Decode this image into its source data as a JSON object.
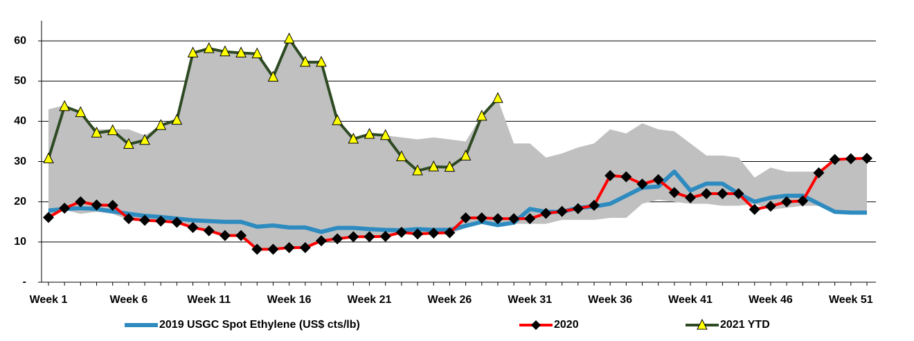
{
  "chart_data": {
    "type": "line",
    "categories": [
      "Week 1",
      null,
      null,
      null,
      null,
      "Week 6",
      null,
      null,
      null,
      null,
      "Week 11",
      null,
      null,
      null,
      null,
      "Week 16",
      null,
      null,
      null,
      null,
      "Week 21",
      null,
      null,
      null,
      null,
      "Week 26",
      null,
      null,
      null,
      null,
      "Week 31",
      null,
      null,
      null,
      null,
      "Week 36",
      null,
      null,
      null,
      null,
      "Week 41",
      null,
      null,
      null,
      null,
      "Week 46",
      null,
      null,
      null,
      null,
      "Week 51",
      null
    ],
    "ylim": [
      0,
      65
    ],
    "yticks": [
      {
        "value": 0,
        "label": "-"
      },
      10,
      20,
      30,
      40,
      50,
      60
    ],
    "grid": true,
    "legend": "bottom",
    "band": {
      "color": "#c0c0c0",
      "upper": [
        43,
        44,
        42,
        38,
        38,
        38,
        36.5,
        39,
        40.5,
        57,
        58,
        57,
        57,
        57,
        51,
        60.5,
        55,
        55,
        40,
        36,
        37,
        36.5,
        36,
        35.5,
        36,
        35.5,
        35,
        41.5,
        45.5,
        34.5,
        34.5,
        31,
        32,
        33.5,
        34.5,
        38,
        37,
        39.5,
        38,
        37.5,
        34.5,
        31.5,
        31.5,
        31,
        26,
        28.5,
        27.5,
        27.5,
        27.5,
        30.5,
        31,
        31
      ],
      "lower": [
        16,
        18,
        17,
        17.5,
        17,
        15.5,
        15.5,
        15,
        14.5,
        13.5,
        12.8,
        11.5,
        11.5,
        8,
        8,
        8.5,
        8.5,
        10,
        10.5,
        11,
        11,
        11,
        12,
        11.8,
        12,
        12,
        13.5,
        14.5,
        14,
        14.5,
        14.5,
        14.5,
        15.5,
        15.5,
        15.5,
        16,
        16,
        19.5,
        20.5,
        20,
        19.5,
        19.5,
        19,
        19,
        19.5,
        18,
        18.5,
        19,
        19,
        17,
        17,
        17
      ]
    },
    "series": [
      {
        "name": "2019 USGC Spot Ethylene (US$ cts/lb)",
        "color": "#2e8bc0",
        "marker": "none",
        "values": [
          17.8,
          18.2,
          18.4,
          18.2,
          17.6,
          17.0,
          16.5,
          16.2,
          15.8,
          15.4,
          15.2,
          15.0,
          15.0,
          13.8,
          14.1,
          13.6,
          13.6,
          12.5,
          13.5,
          13.5,
          13.2,
          13.0,
          12.9,
          13.2,
          13.0,
          13.0,
          14.0,
          15.0,
          14.2,
          14.8,
          18.2,
          17.5,
          17.5,
          18.5,
          18.8,
          19.5,
          21.5,
          23.5,
          23.8,
          27.5,
          22.8,
          24.5,
          24.5,
          22.0,
          20.0,
          21.0,
          21.5,
          21.5,
          19.5,
          17.5,
          17.3,
          17.3
        ]
      },
      {
        "name": "2020",
        "color": "#ff0000",
        "marker": "diamond",
        "values": [
          16.1,
          18.4,
          20.0,
          19.2,
          19.1,
          15.8,
          15.4,
          15.2,
          14.9,
          13.6,
          12.8,
          11.6,
          11.6,
          8.2,
          8.2,
          8.6,
          8.6,
          10.3,
          10.8,
          11.3,
          11.3,
          11.4,
          12.4,
          12.0,
          12.2,
          12.3,
          16.0,
          16.0,
          15.8,
          15.8,
          15.8,
          17.1,
          17.6,
          18.3,
          19.1,
          26.5,
          26.2,
          24.4,
          25.5,
          22.3,
          21.0,
          22.0,
          22.0,
          22.0,
          18.1,
          18.9,
          20.0,
          20.2,
          27.2,
          30.5,
          30.7,
          30.8
        ]
      },
      {
        "name": "2021 YTD",
        "color": "#2d4a22",
        "marker": "triangle",
        "values": [
          30.7,
          43.7,
          42.2,
          37.1,
          37.7,
          34.3,
          35.3,
          39.0,
          40.3,
          57.0,
          58.1,
          57.3,
          57.0,
          56.8,
          51.0,
          60.5,
          54.7,
          54.7,
          40.2,
          35.6,
          36.8,
          36.5,
          31.2,
          27.7,
          28.7,
          28.6,
          31.4,
          41.3,
          45.7,
          null,
          null,
          null,
          null,
          null,
          null,
          null,
          null,
          null,
          null,
          null,
          null,
          null,
          null,
          null,
          null,
          null,
          null,
          null,
          null,
          null,
          null,
          null
        ]
      }
    ]
  }
}
